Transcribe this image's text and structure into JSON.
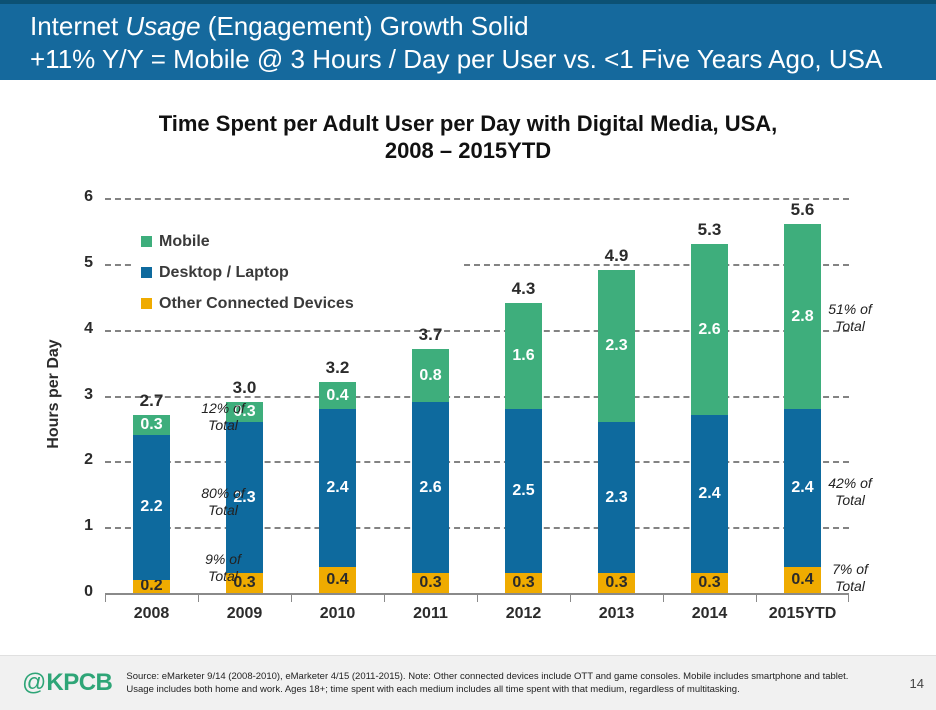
{
  "header": {
    "line1_pre": "Internet ",
    "line1_italic": "Usage",
    "line1_post": " (Engagement) Growth Solid",
    "line2": "+11% Y/Y = Mobile @ 3 Hours / Day per User vs. <1  Five Years Ago, USA",
    "bg_color": "#15699D"
  },
  "chart_data": {
    "type": "bar",
    "stacked": true,
    "title_line1": "Time Spent per Adult User per Day with Digital Media, USA,",
    "title_line2": "2008 – 2015YTD",
    "ylabel": "Hours per Day",
    "xlabel": "",
    "ylim": [
      0,
      6
    ],
    "yticks": [
      0,
      1,
      2,
      3,
      4,
      5,
      6
    ],
    "grid": "horizontal-dashed",
    "legend_position": "upper-left-inside",
    "categories": [
      "2008",
      "2009",
      "2010",
      "2011",
      "2012",
      "2013",
      "2014",
      "2015YTD"
    ],
    "series": [
      {
        "name": "Other Connected Devices",
        "color": "#EFAB00",
        "label_color": "#2b2b2b",
        "values": [
          0.2,
          0.3,
          0.4,
          0.3,
          0.3,
          0.3,
          0.3,
          0.4
        ]
      },
      {
        "name": "Desktop / Laptop",
        "color": "#0E6A9E",
        "label_color": "#ffffff",
        "values": [
          2.2,
          2.3,
          2.4,
          2.6,
          2.5,
          2.3,
          2.4,
          2.4
        ]
      },
      {
        "name": "Mobile",
        "color": "#3EAE7C",
        "label_color": "#ffffff",
        "values": [
          0.3,
          0.3,
          0.4,
          0.8,
          1.6,
          2.3,
          2.6,
          2.8
        ]
      }
    ],
    "totals": [
      "2.7",
      "3.0",
      "3.2",
      "3.7",
      "4.3",
      "4.9",
      "5.3",
      "5.6"
    ],
    "annotations_left": [
      "12% of Total",
      "80% of Total",
      "9% of Total"
    ],
    "annotations_right": [
      "51% of Total",
      "42% of Total",
      "7% of Total"
    ]
  },
  "legend": {
    "items": [
      {
        "label": "Mobile",
        "color": "#3EAE7C"
      },
      {
        "label": "Desktop / Laptop",
        "color": "#0E6A9E"
      },
      {
        "label": "Other Connected Devices",
        "color": "#EFAB00"
      }
    ]
  },
  "footer": {
    "logo_at": "@",
    "logo_name": "KPCB",
    "logo_color": "#2EA577",
    "source_text": "Source: eMarketer 9/14 (2008-2010), eMarketer 4/15 (2011-2015). Note: Other connected devices include OTT and game consoles. Mobile includes smartphone and tablet. Usage includes both home and work. Ages 18+; time spent with each medium includes all time spent with that medium, regardless of multitasking.",
    "page_number": "14"
  }
}
